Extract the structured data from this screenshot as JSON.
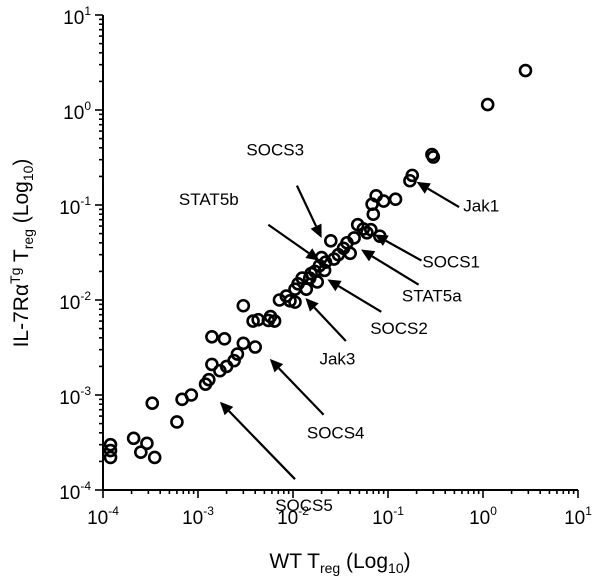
{
  "chart_data": {
    "type": "scatter",
    "x_scale": "log10",
    "y_scale": "log10",
    "xlim": [
      0.0001,
      10
    ],
    "ylim": [
      0.0001,
      10
    ],
    "grid": false,
    "xlabel": {
      "main": "WT T",
      "sub": "reg",
      "paren": " (Log",
      "paren_sub": "10",
      "close": ")"
    },
    "ylabel": {
      "pre": "IL-7R",
      "alpha": "α",
      "sup": "Tg",
      "mid": " T",
      "sub": "reg",
      "paren": " (Log",
      "paren_sub": "10",
      "close": ")"
    },
    "x_ticks": [
      {
        "value": 0.0001,
        "base": "10",
        "exp": "-4"
      },
      {
        "value": 0.001,
        "base": "10",
        "exp": "-3"
      },
      {
        "value": 0.01,
        "base": "10",
        "exp": "-2"
      },
      {
        "value": 0.1,
        "base": "10",
        "exp": "-1"
      },
      {
        "value": 1,
        "base": "10",
        "exp": "0"
      },
      {
        "value": 10,
        "base": "10",
        "exp": "1"
      }
    ],
    "y_ticks": [
      {
        "value": 0.0001,
        "base": "10",
        "exp": "-4"
      },
      {
        "value": 0.001,
        "base": "10",
        "exp": "-3"
      },
      {
        "value": 0.01,
        "base": "10",
        "exp": "-2"
      },
      {
        "value": 0.1,
        "base": "10",
        "exp": "-1"
      },
      {
        "value": 1,
        "base": "10",
        "exp": "0"
      },
      {
        "value": 10,
        "base": "10",
        "exp": "1"
      }
    ],
    "points": [
      [
        0.00012,
        0.0003
      ],
      [
        0.00012,
        0.00026
      ],
      [
        0.00012,
        0.00022
      ],
      [
        0.00021,
        0.00035
      ],
      [
        0.00025,
        0.00025
      ],
      [
        0.00029,
        0.00031
      ],
      [
        0.00033,
        0.00082
      ],
      [
        0.00035,
        0.00022
      ],
      [
        0.0006,
        0.00052
      ],
      [
        0.00068,
        0.0009
      ],
      [
        0.00085,
        0.001
      ],
      [
        0.0012,
        0.0013
      ],
      [
        0.0013,
        0.00145
      ],
      [
        0.0014,
        0.0041
      ],
      [
        0.0014,
        0.0021
      ],
      [
        0.0017,
        0.0018
      ],
      [
        0.0019,
        0.0039
      ],
      [
        0.002,
        0.002
      ],
      [
        0.0024,
        0.0023
      ],
      [
        0.0026,
        0.0027
      ],
      [
        0.003,
        0.0035
      ],
      [
        0.003,
        0.0087
      ],
      [
        0.0038,
        0.006
      ],
      [
        0.004,
        0.0032
      ],
      [
        0.0043,
        0.0062
      ],
      [
        0.0055,
        0.0061
      ],
      [
        0.0058,
        0.0067
      ],
      [
        0.0064,
        0.006
      ],
      [
        0.0072,
        0.01
      ],
      [
        0.0085,
        0.011
      ],
      [
        0.0093,
        0.0098
      ],
      [
        0.0105,
        0.013
      ],
      [
        0.0105,
        0.0095
      ],
      [
        0.0113,
        0.0148
      ],
      [
        0.0125,
        0.017
      ],
      [
        0.0138,
        0.013
      ],
      [
        0.015,
        0.017
      ],
      [
        0.0155,
        0.019
      ],
      [
        0.017,
        0.02
      ],
      [
        0.018,
        0.0155
      ],
      [
        0.019,
        0.023
      ],
      [
        0.02,
        0.028
      ],
      [
        0.0215,
        0.0205
      ],
      [
        0.022,
        0.025
      ],
      [
        0.025,
        0.042
      ],
      [
        0.027,
        0.027
      ],
      [
        0.03,
        0.03
      ],
      [
        0.034,
        0.035
      ],
      [
        0.037,
        0.04
      ],
      [
        0.04,
        0.031
      ],
      [
        0.044,
        0.045
      ],
      [
        0.048,
        0.062
      ],
      [
        0.055,
        0.056
      ],
      [
        0.06,
        0.051
      ],
      [
        0.066,
        0.055
      ],
      [
        0.07,
        0.08
      ],
      [
        0.068,
        0.102
      ],
      [
        0.075,
        0.125
      ],
      [
        0.082,
        0.047
      ],
      [
        0.09,
        0.11
      ],
      [
        0.12,
        0.115
      ],
      [
        0.17,
        0.18
      ],
      [
        0.18,
        0.205
      ],
      [
        0.29,
        0.34
      ],
      [
        0.3,
        0.32
      ],
      [
        1.12,
        1.14
      ],
      [
        2.8,
        2.6
      ]
    ],
    "annotations": [
      {
        "label": "SOCS3",
        "tx": 0.0065,
        "ty": 0.33,
        "px": 0.02,
        "py": 0.043,
        "align": "middle",
        "fromX": 0.011,
        "fromY": 0.16,
        "toX": 0.02,
        "toY": 0.045
      },
      {
        "label": "STAT5b",
        "tx": 0.0013,
        "ty": 0.1,
        "px": 0.019,
        "py": 0.025,
        "align": "middle",
        "fromX": 0.0055,
        "fromY": 0.062,
        "toX": 0.019,
        "toY": 0.026
      },
      {
        "label": "Jak1",
        "tx": 0.62,
        "ty": 0.085,
        "px": 0.2,
        "py": 0.17,
        "align": "start",
        "fromX": 0.56,
        "fromY": 0.095,
        "toX": 0.2,
        "toY": 0.175
      },
      {
        "label": "SOCS1",
        "tx": 0.23,
        "ty": 0.022,
        "px": 0.07,
        "py": 0.05,
        "align": "start",
        "fromX": 0.225,
        "fromY": 0.026,
        "toX": 0.072,
        "toY": 0.049
      },
      {
        "label": "STAT5a",
        "tx": 0.14,
        "ty": 0.0096,
        "px": 0.05,
        "py": 0.034,
        "align": "start",
        "fromX": 0.21,
        "fromY": 0.0145,
        "toX": 0.052,
        "toY": 0.034
      },
      {
        "label": "SOCS2",
        "tx": 0.065,
        "ty": 0.0044,
        "px": 0.022,
        "py": 0.017,
        "align": "start",
        "fromX": 0.085,
        "fromY": 0.0075,
        "toX": 0.023,
        "toY": 0.0165
      },
      {
        "label": "Jak3",
        "tx": 0.019,
        "ty": 0.0021,
        "px": 0.013,
        "py": 0.011,
        "align": "start",
        "fromX": 0.036,
        "fromY": 0.0037,
        "toX": 0.0135,
        "toY": 0.0105
      },
      {
        "label": "SOCS4",
        "tx": 0.014,
        "ty": 0.00035,
        "px": 0.0055,
        "py": 0.0025,
        "align": "start",
        "fromX": 0.021,
        "fromY": 0.00062,
        "toX": 0.0057,
        "toY": 0.0024
      },
      {
        "label": "SOCS5",
        "tx": 0.0065,
        "ty": 6e-05,
        "px": 0.0016,
        "py": 0.00088,
        "align": "start",
        "fromX": 0.0105,
        "fromY": 0.00013,
        "toX": 0.0017,
        "toY": 0.00085
      }
    ]
  }
}
